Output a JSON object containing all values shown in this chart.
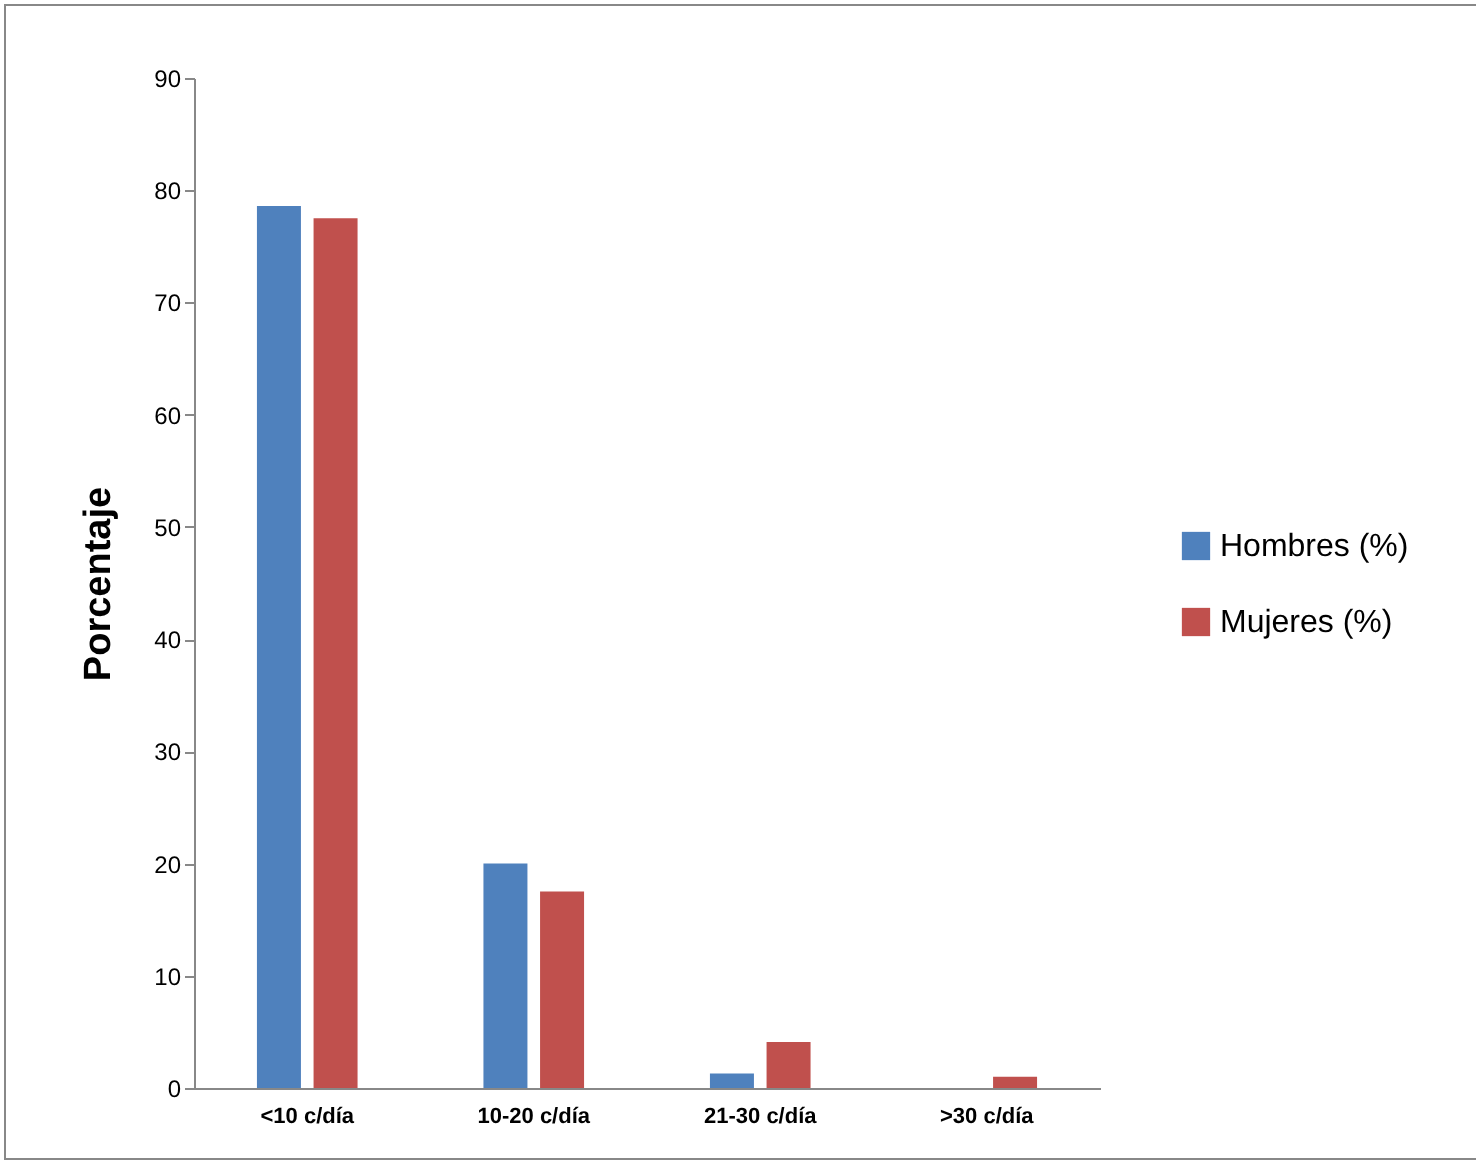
{
  "chart_data": {
    "type": "bar",
    "ylabel": "Porcentaje",
    "categories": [
      "<10 c/día",
      "10-20 c/día",
      "21-30 c/día",
      ">30 c/día"
    ],
    "series": [
      {
        "name": "Hombres (%)",
        "color": "#4f81bd",
        "values": [
          78.6,
          20.0,
          1.3,
          0
        ]
      },
      {
        "name": "Mujeres (%)",
        "color": "#c0504d",
        "values": [
          77.5,
          17.5,
          4.1,
          1.0
        ]
      }
    ],
    "ylim": [
      0,
      90
    ],
    "yticks": [
      0,
      10,
      20,
      30,
      40,
      50,
      60,
      70,
      80,
      90
    ],
    "grid": false,
    "legend": "right"
  }
}
